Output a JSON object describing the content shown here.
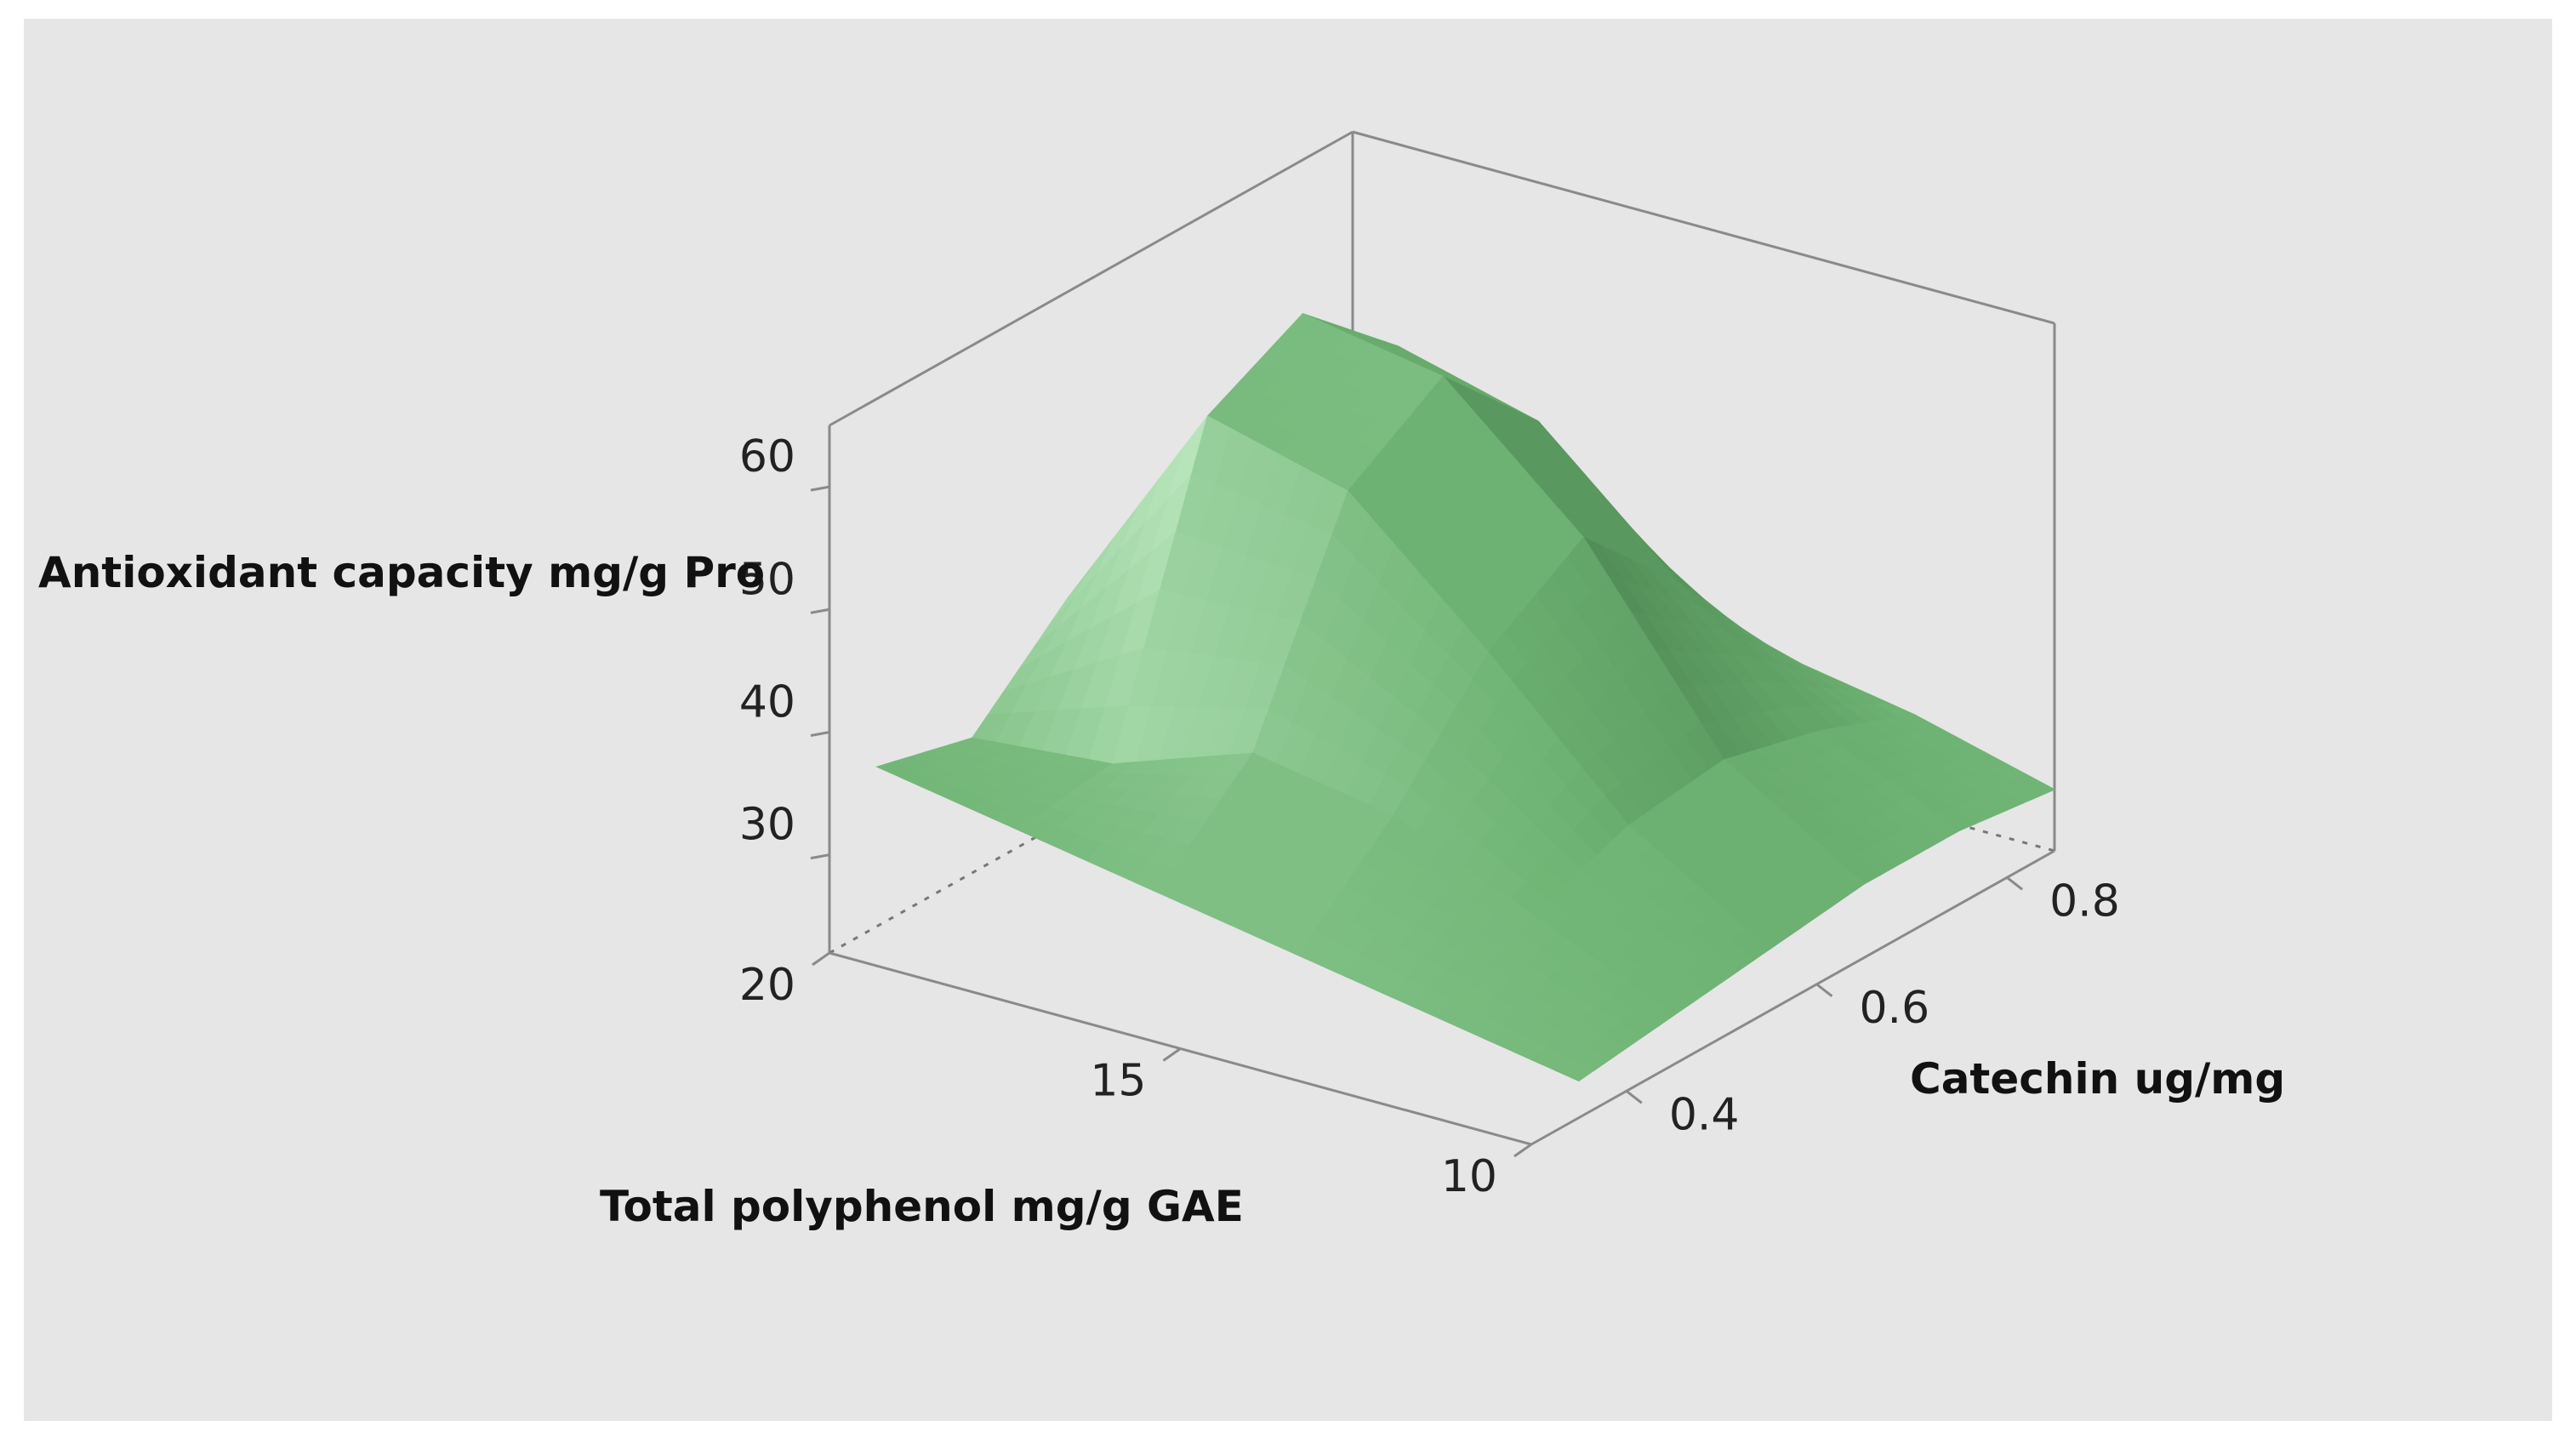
{
  "chart_data": {
    "type": "surface",
    "title": "",
    "x_axis": {
      "label": "Total polyphenol mg/g GAE",
      "range": [
        10,
        20
      ],
      "ticks": [
        {
          "value": 20,
          "label": "20"
        },
        {
          "value": 15,
          "label": "15"
        },
        {
          "value": 10,
          "label": "10"
        }
      ]
    },
    "y_axis": {
      "label": "Catechin ug/mg",
      "range": [
        0.3,
        0.85
      ],
      "ticks": [
        {
          "value": 0.4,
          "label": "0.4"
        },
        {
          "value": 0.6,
          "label": "0.6"
        },
        {
          "value": 0.8,
          "label": "0.8"
        }
      ]
    },
    "z_axis": {
      "label": "Antioxidant capacity  mg/g  Pro",
      "range": [
        22,
        65
      ],
      "ticks": [
        {
          "value": 30,
          "label": "30"
        },
        {
          "value": 40,
          "label": "40"
        },
        {
          "value": 50,
          "label": "50"
        },
        {
          "value": 60,
          "label": "60"
        }
      ]
    },
    "surface": {
      "x": [
        10,
        12,
        14,
        16,
        18,
        20
      ],
      "y": [
        0.35,
        0.45,
        0.55,
        0.65,
        0.75,
        0.85
      ],
      "z": [
        [
          25,
          27,
          29,
          31,
          33,
          35
        ],
        [
          26,
          31,
          36,
          38,
          34,
          33
        ],
        [
          27,
          34,
          45,
          55,
          58,
          40
        ],
        [
          28,
          35,
          50,
          60,
          62,
          42
        ],
        [
          28,
          33,
          42,
          52,
          55,
          40
        ],
        [
          27,
          30,
          32,
          34,
          34,
          32
        ]
      ]
    },
    "colors": {
      "background": "#e6e6e6",
      "surface_light": "#c8f0cc",
      "surface_mid": "#6fb474",
      "surface_dark": "#123c18",
      "axis": "#8a8a8a"
    },
    "grid": false,
    "legend": "none"
  }
}
